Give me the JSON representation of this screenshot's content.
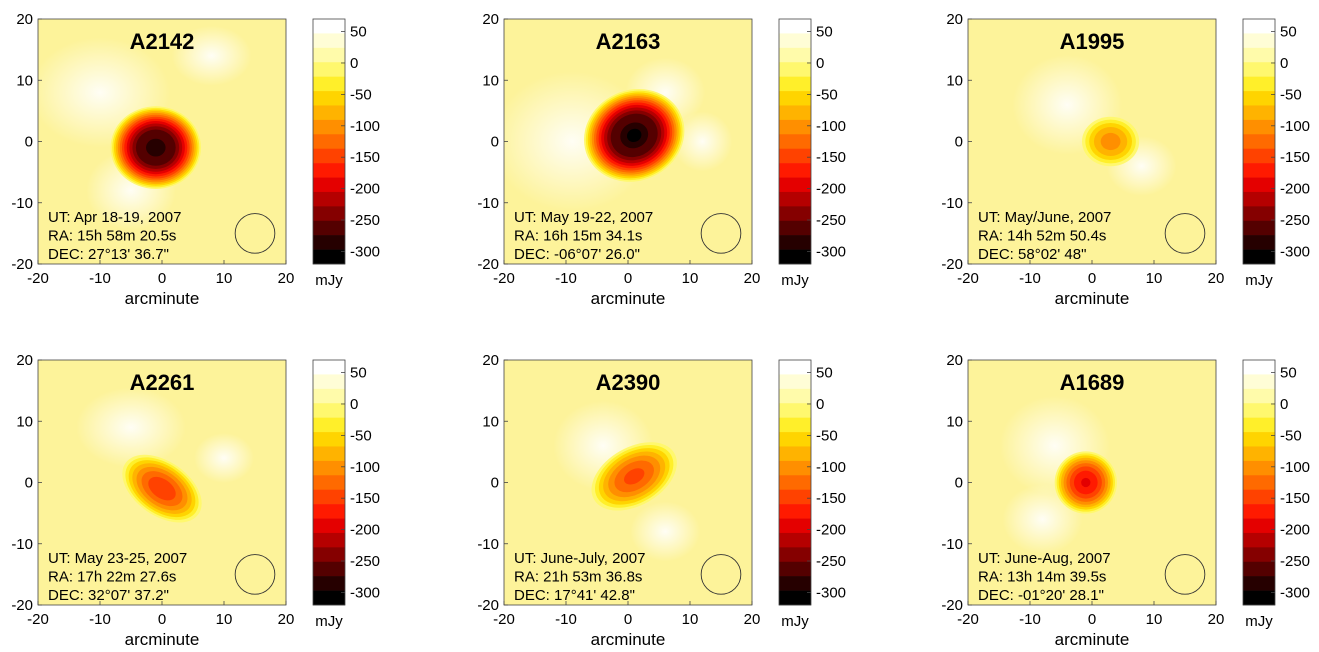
{
  "chart_data": [
    {
      "type": "heatmap",
      "title": "A2142",
      "xlabel": "arcminute",
      "colorbar_unit": "mJy",
      "xlim": [
        -20,
        20
      ],
      "ylim": [
        -20,
        20
      ],
      "x_ticks": [
        "-20",
        "-10",
        "0",
        "10",
        "20"
      ],
      "y_ticks": [
        "20",
        "10",
        "0",
        "-10",
        "-20"
      ],
      "colorbar_ticks": [
        "50",
        "0",
        "-50",
        "-100",
        "-150",
        "-200",
        "-250",
        "-300"
      ],
      "annotations": [
        "UT: Apr 18-19, 2007",
        "RA: 15h 58m 20.5s",
        "DEC: 27°13' 36.7\""
      ],
      "peak": {
        "x": -1,
        "y": -1,
        "value": -310
      },
      "beam_circle": {
        "x": 15,
        "y": -15,
        "radius": 3.2
      }
    },
    {
      "type": "heatmap",
      "title": "A2163",
      "xlabel": "arcminute",
      "colorbar_unit": "mJy",
      "xlim": [
        -20,
        20
      ],
      "ylim": [
        -20,
        20
      ],
      "x_ticks": [
        "-20",
        "-10",
        "0",
        "10",
        "20"
      ],
      "y_ticks": [
        "20",
        "10",
        "0",
        "-10",
        "-20"
      ],
      "colorbar_ticks": [
        "50",
        "0",
        "-50",
        "-100",
        "-150",
        "-200",
        "-250",
        "-300"
      ],
      "annotations": [
        "UT: May 19-22, 2007",
        "RA: 16h 15m 34.1s",
        "DEC: -06°07' 26.0\""
      ],
      "peak": {
        "x": 1,
        "y": 1,
        "value": -320
      },
      "beam_circle": {
        "x": 15,
        "y": -15,
        "radius": 3.2
      }
    },
    {
      "type": "heatmap",
      "title": "A1995",
      "xlabel": "arcminute",
      "colorbar_unit": "mJy",
      "xlim": [
        -20,
        20
      ],
      "ylim": [
        -20,
        20
      ],
      "x_ticks": [
        "-20",
        "-10",
        "0",
        "10",
        "20"
      ],
      "y_ticks": [
        "20",
        "10",
        "0",
        "-10",
        "-20"
      ],
      "colorbar_ticks": [
        "50",
        "0",
        "-50",
        "-100",
        "-150",
        "-200",
        "-250",
        "-300"
      ],
      "annotations": [
        "UT: May/June, 2007",
        "RA: 14h 52m 50.4s",
        "DEC: 58°02' 48\""
      ],
      "peak": {
        "x": 3,
        "y": 0,
        "value": -110
      },
      "beam_circle": {
        "x": 15,
        "y": -15,
        "radius": 3.2
      }
    },
    {
      "type": "heatmap",
      "title": "A2261",
      "xlabel": "arcminute",
      "colorbar_unit": "mJy",
      "xlim": [
        -20,
        20
      ],
      "ylim": [
        -20,
        20
      ],
      "x_ticks": [
        "-20",
        "-10",
        "0",
        "10",
        "20"
      ],
      "y_ticks": [
        "20",
        "10",
        "0",
        "-10",
        "-20"
      ],
      "colorbar_ticks": [
        "50",
        "0",
        "-50",
        "-100",
        "-150",
        "-200",
        "-250",
        "-300"
      ],
      "annotations": [
        "UT: May 23-25, 2007",
        "RA: 17h 22m 27.6s",
        "DEC: 32°07' 37.2\""
      ],
      "peak": {
        "x": 0,
        "y": -1,
        "value": -160
      },
      "beam_circle": {
        "x": 15,
        "y": -15,
        "radius": 3.2
      }
    },
    {
      "type": "heatmap",
      "title": "A2390",
      "xlabel": "arcminute",
      "colorbar_unit": "mJy",
      "xlim": [
        -20,
        20
      ],
      "ylim": [
        -20,
        20
      ],
      "x_ticks": [
        "-20",
        "-10",
        "0",
        "10",
        "20"
      ],
      "y_ticks": [
        "20",
        "10",
        "0",
        "-10",
        "-20"
      ],
      "colorbar_ticks": [
        "50",
        "0",
        "-50",
        "-100",
        "-150",
        "-200",
        "-250",
        "-300"
      ],
      "annotations": [
        "UT: June-July, 2007",
        "RA: 21h 53m 36.8s",
        "DEC: 17°41' 42.8\""
      ],
      "peak": {
        "x": 1,
        "y": 1,
        "value": -150
      },
      "beam_circle": {
        "x": 15,
        "y": -15,
        "radius": 3.2
      }
    },
    {
      "type": "heatmap",
      "title": "A1689",
      "xlabel": "arcminute",
      "colorbar_unit": "mJy",
      "xlim": [
        -20,
        20
      ],
      "ylim": [
        -20,
        20
      ],
      "x_ticks": [
        "-20",
        "-10",
        "0",
        "10",
        "20"
      ],
      "y_ticks": [
        "20",
        "10",
        "0",
        "-10",
        "-20"
      ],
      "colorbar_ticks": [
        "50",
        "0",
        "-50",
        "-100",
        "-150",
        "-200",
        "-250",
        "-300"
      ],
      "annotations": [
        "UT: June-Aug, 2007",
        "RA: 13h 14m 39.5s",
        "DEC: -01°20' 28.1\""
      ],
      "peak": {
        "x": -1,
        "y": 0,
        "value": -190
      },
      "beam_circle": {
        "x": 15,
        "y": -15,
        "radius": 3.2
      }
    }
  ],
  "colors": {
    "background_field": "#fdf39a",
    "colorbar": [
      "#ffffff",
      "#fffdd6",
      "#fffbaa",
      "#fff86e",
      "#ffef2a",
      "#ffd400",
      "#ffb300",
      "#ff8f00",
      "#ff6a00",
      "#ff4200",
      "#ff1a00",
      "#e40000",
      "#b50000",
      "#850000",
      "#540000",
      "#260000",
      "#000000"
    ]
  }
}
